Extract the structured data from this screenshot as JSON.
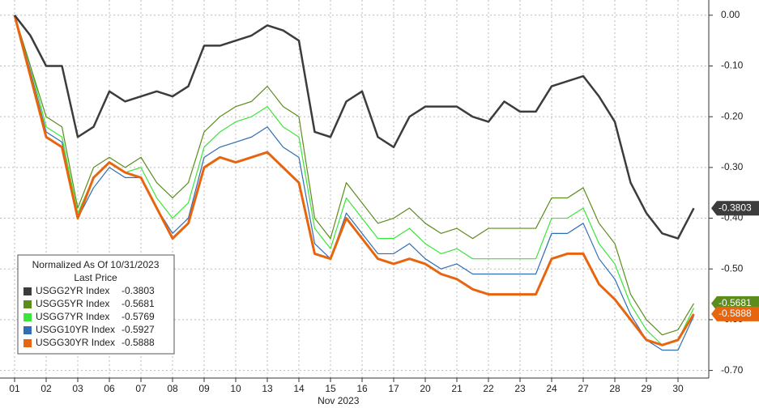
{
  "chart_data": {
    "type": "line",
    "categories": [
      "01",
      null,
      "02",
      null,
      "03",
      null,
      "06",
      null,
      "07",
      null,
      "08",
      null,
      "09",
      null,
      "10",
      null,
      "13",
      null,
      "14",
      null,
      "15",
      null,
      "16",
      null,
      "17",
      null,
      "20",
      null,
      "21",
      null,
      "22",
      null,
      "23",
      null,
      "24",
      null,
      "27",
      null,
      "28",
      null,
      "29",
      null,
      "30",
      null
    ],
    "x_label": "Nov 2023",
    "ylim": [
      -0.715,
      0.03
    ],
    "yticks": [
      {
        "value": 0,
        "label": "0.00"
      },
      {
        "value": -0.1,
        "label": "-0.10"
      },
      {
        "value": -0.2,
        "label": "-0.20"
      },
      {
        "value": -0.3,
        "label": "-0.30"
      },
      {
        "value": -0.4,
        "label": "-0.40"
      },
      {
        "value": -0.5,
        "label": "-0.50"
      },
      {
        "value": -0.6,
        "label": "-0.60"
      },
      {
        "value": -0.7,
        "label": "-0.70"
      }
    ],
    "grid": true,
    "legend": {
      "title": "Normalized As Of 10/31/2023",
      "subtitle": "Last Price",
      "position": "lower left"
    },
    "series": [
      {
        "name": "USGG2YR Index",
        "color": "#3c3c3c",
        "last": -0.3803,
        "tagged": true,
        "values": [
          0,
          -0.04,
          -0.1,
          -0.1,
          -0.24,
          -0.22,
          -0.15,
          -0.17,
          -0.16,
          -0.15,
          -0.16,
          -0.14,
          -0.06,
          -0.06,
          -0.05,
          -0.04,
          -0.02,
          -0.03,
          -0.05,
          -0.23,
          -0.24,
          -0.17,
          -0.15,
          -0.24,
          -0.26,
          -0.2,
          -0.18,
          -0.18,
          -0.18,
          -0.2,
          -0.21,
          -0.17,
          -0.19,
          -0.19,
          -0.14,
          -0.13,
          -0.12,
          -0.16,
          -0.21,
          -0.33,
          -0.39,
          -0.43,
          -0.44,
          -0.3803
        ]
      },
      {
        "name": "USGG5YR Index",
        "color": "#5b8c1c",
        "last": -0.5681,
        "tagged": true,
        "values": [
          0,
          -0.1,
          -0.2,
          -0.22,
          -0.38,
          -0.3,
          -0.28,
          -0.3,
          -0.28,
          -0.33,
          -0.36,
          -0.33,
          -0.23,
          -0.2,
          -0.18,
          -0.17,
          -0.14,
          -0.18,
          -0.2,
          -0.4,
          -0.44,
          -0.33,
          -0.37,
          -0.41,
          -0.4,
          -0.38,
          -0.41,
          -0.43,
          -0.42,
          -0.44,
          -0.42,
          -0.42,
          -0.42,
          -0.42,
          -0.36,
          -0.36,
          -0.34,
          -0.41,
          -0.45,
          -0.55,
          -0.6,
          -0.63,
          -0.62,
          -0.5681
        ]
      },
      {
        "name": "USGG7YR Index",
        "color": "#39e639",
        "last": -0.5769,
        "tagged": false,
        "values": [
          0,
          -0.1,
          -0.22,
          -0.24,
          -0.39,
          -0.32,
          -0.29,
          -0.31,
          -0.3,
          -0.36,
          -0.4,
          -0.37,
          -0.26,
          -0.23,
          -0.21,
          -0.2,
          -0.18,
          -0.22,
          -0.24,
          -0.42,
          -0.46,
          -0.36,
          -0.4,
          -0.44,
          -0.44,
          -0.42,
          -0.45,
          -0.47,
          -0.46,
          -0.48,
          -0.48,
          -0.48,
          -0.48,
          -0.48,
          -0.4,
          -0.4,
          -0.38,
          -0.45,
          -0.49,
          -0.57,
          -0.62,
          -0.65,
          -0.64,
          -0.5769
        ]
      },
      {
        "name": "USGG10YR Index",
        "color": "#2f6db5",
        "last": -0.5927,
        "tagged": false,
        "values": [
          0,
          -0.11,
          -0.23,
          -0.25,
          -0.4,
          -0.34,
          -0.3,
          -0.32,
          -0.32,
          -0.38,
          -0.43,
          -0.4,
          -0.28,
          -0.26,
          -0.25,
          -0.24,
          -0.22,
          -0.26,
          -0.28,
          -0.45,
          -0.48,
          -0.39,
          -0.43,
          -0.47,
          -0.47,
          -0.45,
          -0.48,
          -0.5,
          -0.49,
          -0.51,
          -0.51,
          -0.51,
          -0.51,
          -0.51,
          -0.43,
          -0.43,
          -0.41,
          -0.48,
          -0.52,
          -0.59,
          -0.64,
          -0.66,
          -0.66,
          -0.5927
        ]
      },
      {
        "name": "USGG30YR Index",
        "color": "#e8650f",
        "last": -0.5888,
        "tagged": true,
        "values": [
          0,
          -0.12,
          -0.24,
          -0.26,
          -0.4,
          -0.32,
          -0.29,
          -0.31,
          -0.32,
          -0.38,
          -0.44,
          -0.41,
          -0.3,
          -0.28,
          -0.29,
          -0.28,
          -0.27,
          -0.3,
          -0.33,
          -0.47,
          -0.48,
          -0.4,
          -0.44,
          -0.48,
          -0.49,
          -0.48,
          -0.49,
          -0.51,
          -0.52,
          -0.54,
          -0.55,
          -0.55,
          -0.55,
          -0.55,
          -0.48,
          -0.47,
          -0.47,
          -0.53,
          -0.56,
          -0.6,
          -0.64,
          -0.65,
          -0.64,
          -0.5888
        ]
      }
    ]
  }
}
